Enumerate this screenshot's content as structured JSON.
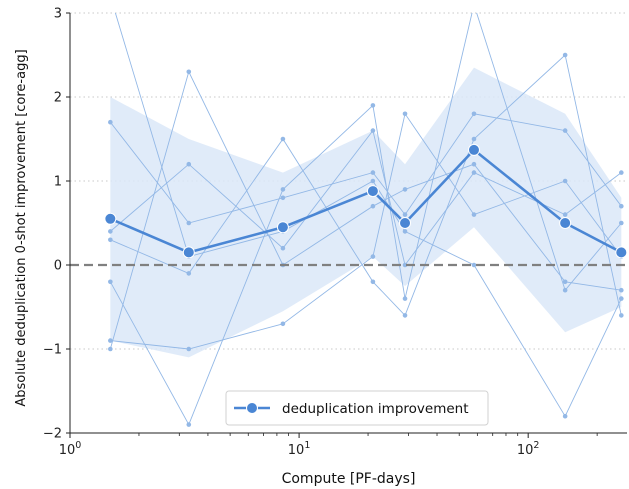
{
  "chart_data": {
    "type": "line",
    "title": "",
    "xlabel": "Compute [PF-days]",
    "ylabel": "Absolute deduplication 0-shot improvement [core-agg]",
    "x_scale": "log",
    "xlim": [
      1,
      270
    ],
    "ylim": [
      -2,
      3
    ],
    "x_ticks": [
      {
        "value": 1,
        "label": "10^0"
      },
      {
        "value": 10,
        "label": "10^1"
      },
      {
        "value": 100,
        "label": "10^2"
      }
    ],
    "y_ticks": [
      {
        "value": 3,
        "label": "3"
      },
      {
        "value": 2,
        "label": "2"
      },
      {
        "value": 1,
        "label": "1"
      },
      {
        "value": 0,
        "label": "0"
      },
      {
        "value": -1,
        "label": "−1"
      },
      {
        "value": -2,
        "label": "−2"
      }
    ],
    "grid": "horizontal dotted",
    "reference_line": {
      "y": 0,
      "style": "dashed",
      "color": "#808080"
    },
    "legend": {
      "position": "bottom-center",
      "entries": [
        "deduplication improvement"
      ]
    },
    "x": [
      1.5,
      3.3,
      8.5,
      21,
      29,
      58,
      145,
      255
    ],
    "series": [
      {
        "name": "deduplication improvement",
        "values": [
          0.55,
          0.15,
          0.45,
          0.88,
          0.5,
          1.37,
          0.5,
          0.15
        ],
        "color": "#4a86d4"
      }
    ],
    "band": {
      "upper": [
        2.0,
        1.5,
        1.1,
        1.6,
        1.2,
        2.35,
        1.8,
        0.8
      ],
      "lower": [
        -0.9,
        -1.1,
        -0.55,
        0.1,
        -0.25,
        0.45,
        -0.8,
        -0.5
      ],
      "color": "#dbe8f8"
    },
    "individual_runs": [
      [
        1.7,
        0.5,
        0.8,
        1.1,
        0.6,
        1.8,
        1.6,
        0.7
      ],
      [
        0.4,
        1.2,
        0.2,
        1.6,
        0.0,
        1.1,
        0.6,
        1.1
      ],
      [
        -0.2,
        -1.9,
        0.9,
        1.9,
        -0.4,
        3.1,
        -0.3,
        0.5
      ],
      [
        -1.0,
        2.3,
        0.0,
        0.7,
        0.9,
        1.2,
        -0.2,
        -0.3
      ],
      [
        0.3,
        -0.1,
        1.5,
        -0.2,
        -0.6,
        1.5,
        2.5,
        -0.6
      ],
      [
        -0.9,
        -1.0,
        -0.7,
        0.1,
        1.8,
        0.6,
        1.0,
        0.1
      ],
      [
        3.2,
        0.1,
        0.4,
        1.0,
        0.4,
        0.0,
        -1.8,
        -0.4
      ]
    ],
    "runs_color": "#93b8e6"
  }
}
